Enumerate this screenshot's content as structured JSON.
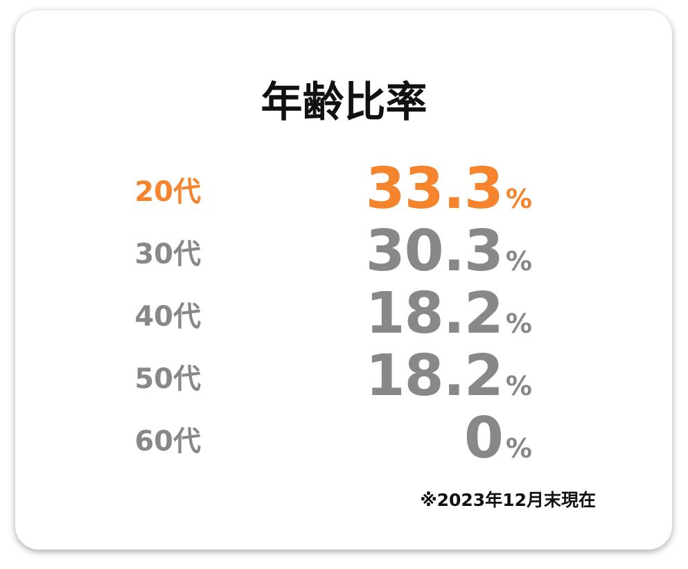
{
  "header": {
    "title": "年齢比率"
  },
  "table": {
    "rows": [
      {
        "label": "20代",
        "value": 33.3,
        "unit": "%"
      },
      {
        "label": "30代",
        "value": 30.3,
        "unit": "%"
      },
      {
        "label": "40代",
        "value": 18.2,
        "unit": "%"
      },
      {
        "label": "50代",
        "value": 18.2,
        "unit": "%"
      },
      {
        "label": "60代",
        "value": 0,
        "unit": "%"
      }
    ]
  },
  "footer": {
    "note": "※2023年12月末現在"
  }
}
